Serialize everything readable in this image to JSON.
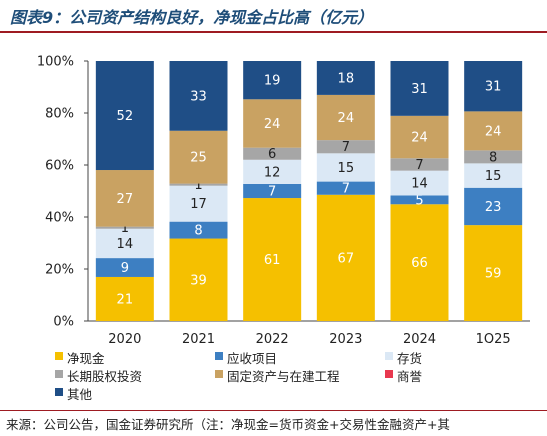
{
  "header": {
    "title": "图表9：公司资产结构良好，净现金占比高（亿元）"
  },
  "source_note": "来源：公司公告，国金证券研究所（注：净现金=货币资金+交易性金融资产+其",
  "chart_data": {
    "type": "bar",
    "stacked": "percent",
    "categories": [
      "2020",
      "2021",
      "2022",
      "2023",
      "2024",
      "1Q25"
    ],
    "y_ticks": [
      "0%",
      "20%",
      "40%",
      "60%",
      "80%",
      "100%"
    ],
    "ylim": [
      0,
      100
    ],
    "grid": false,
    "legend_position": "bottom",
    "series": [
      {
        "name": "净现金",
        "color": "#f5c000",
        "label_color": "#ffffff",
        "values": [
          21,
          39,
          61,
          67,
          66,
          59
        ]
      },
      {
        "name": "应收项目",
        "color": "#3d7fc2",
        "label_color": "#ffffff",
        "values": [
          9,
          8,
          7,
          7,
          5,
          23
        ]
      },
      {
        "name": "存货",
        "color": "#dbe8f5",
        "label_color": "#222222",
        "values": [
          14,
          17,
          12,
          15,
          14,
          15
        ]
      },
      {
        "name": "长期股权投资",
        "color": "#a6a6a6",
        "label_color": "#222222",
        "values": [
          1,
          1,
          6,
          7,
          7,
          8
        ]
      },
      {
        "name": "固定资产与在建工程",
        "color": "#c9a262",
        "label_color": "#ffffff",
        "values": [
          27,
          25,
          24,
          24,
          24,
          24
        ]
      },
      {
        "name": "商誉",
        "color": "#e8384f",
        "label_color": "#ffffff",
        "values": [
          0,
          0,
          0,
          0,
          0,
          0
        ]
      },
      {
        "name": "其他",
        "color": "#1f4e86",
        "label_color": "#ffffff",
        "values": [
          52,
          33,
          19,
          18,
          31,
          31
        ]
      }
    ]
  }
}
